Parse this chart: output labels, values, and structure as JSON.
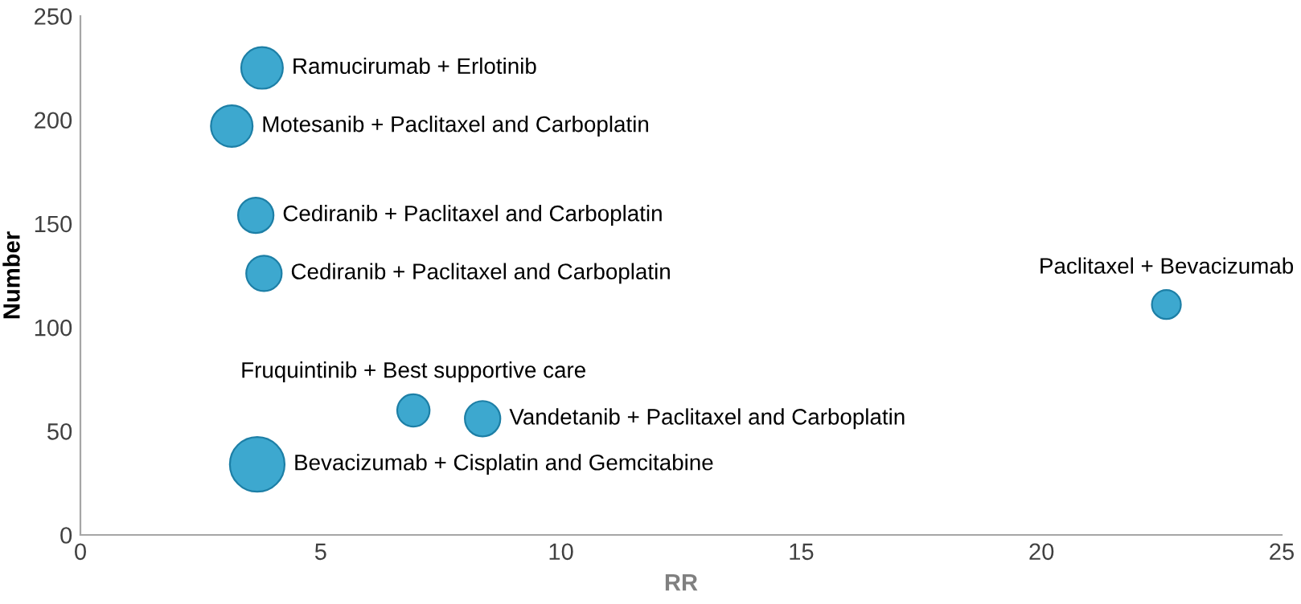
{
  "chart_data": {
    "type": "bubble",
    "xlabel": "RR",
    "ylabel": "Number",
    "x": [
      3.78,
      3.15,
      3.65,
      3.82,
      22.6,
      6.93,
      8.37,
      3.68
    ],
    "values": [
      225,
      197,
      154,
      126,
      111,
      60,
      56,
      34
    ],
    "sizes": [
      0.58,
      0.58,
      0.42,
      0.42,
      0.28,
      0.35,
      0.42,
      1
    ],
    "color": "#3da8cf",
    "xlim": [
      0,
      25
    ],
    "ylim": [
      0,
      250
    ],
    "xticks": [
      0,
      5,
      10,
      15,
      20,
      25
    ],
    "yticks": [
      0,
      50,
      100,
      150,
      200,
      250
    ],
    "grid": false,
    "legend": false,
    "annotations": [
      {
        "text": "Ramucirumab + Erlotinib",
        "x": 3.78,
        "y": 225
      },
      {
        "text": "Motesanib + Paclitaxel and Carboplatin",
        "x": 3.15,
        "y": 197
      },
      {
        "text": "Cediranib + Paclitaxel and Carboplatin",
        "x": 3.65,
        "y": 154
      },
      {
        "text": "Cediranib + Paclitaxel and Carboplatin",
        "x": 3.82,
        "y": 126
      },
      {
        "text": "Paclitaxel + Bevacizumab",
        "x": 22.6,
        "y": 111
      },
      {
        "text": "Fruquintinib + Best supportive care",
        "x": 6.93,
        "y": 60
      },
      {
        "text": "Vandetanib + Paclitaxel and Carboplatin",
        "x": 8.37,
        "y": 56
      },
      {
        "text": "Bevacizumab + Cisplatin and Gemcitabine",
        "x": 3.68,
        "y": 34
      }
    ]
  }
}
